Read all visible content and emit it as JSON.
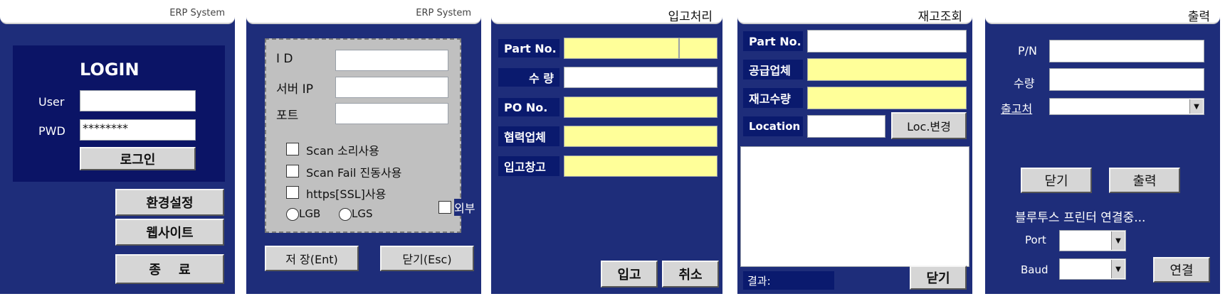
{
  "login": {
    "title": "ERP System",
    "heading": "LOGIN",
    "user_label": "User",
    "pwd_label": "PWD",
    "pwd_value": "********",
    "login_button": "로그인",
    "settings_button": "환경설정",
    "website_button": "웹사이트",
    "exit_button": "종    료"
  },
  "settings": {
    "title": "ERP System",
    "id_label": "I D",
    "server_ip_label": "서버 IP",
    "port_label": "포트",
    "scan_sound_label": "Scan 소리사용",
    "scan_fail_label": "Scan Fail 진동사용",
    "https_label": "https[SSL]사용",
    "radio_lgb": "LGB",
    "radio_lgs": "LGS",
    "external_label": "외부",
    "save_button": "저 장(Ent)",
    "close_button": "닫기(Esc)"
  },
  "receiving": {
    "title": "입고처리",
    "part_no_label": "Part No.",
    "qty_label": "수 량",
    "po_no_label": "PO No.",
    "partner_label": "협력업체",
    "warehouse_label": "입고창고",
    "receive_button": "입고",
    "cancel_button": "취소"
  },
  "inventory": {
    "title": "재고조회",
    "part_no_label": "Part No.",
    "supplier_label": "공급업체",
    "stock_qty_label": "재고수량",
    "location_label": "Location",
    "loc_change_button": "Loc.변경",
    "result_label": "결과:",
    "close_button": "닫기"
  },
  "print": {
    "title": "출력",
    "pn_label": "P/N",
    "qty_label": "수량",
    "ship_to_label": "출고처",
    "close_button": "닫기",
    "print_button": "출력",
    "bt_status": "블루투스 프린터 연결중...",
    "port_label": "Port",
    "baud_label": "Baud",
    "connect_button": "연결"
  },
  "colors": {
    "panel_bg": "#1e2d7a",
    "label_bg": "#0a1a6e",
    "field_yellow": "#ffff99",
    "button_gray": "#d6d6d6"
  }
}
